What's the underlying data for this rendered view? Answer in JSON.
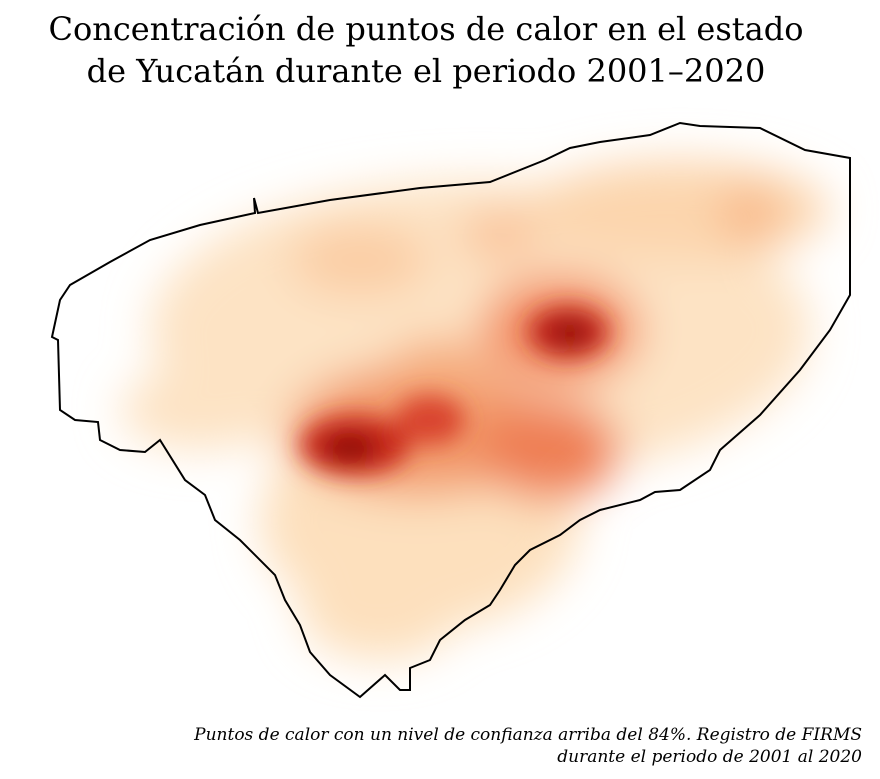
{
  "title": {
    "lines": [
      "Concentración de puntos de calor en el estado",
      "de Yucatán durante el periodo 2001–2020"
    ]
  },
  "caption": {
    "lines": [
      "Puntos de calor con un nivel de confianza arriba del 84%. Registro de FIRMS",
      "durante el periodo de 2001 al 2020"
    ]
  }
}
